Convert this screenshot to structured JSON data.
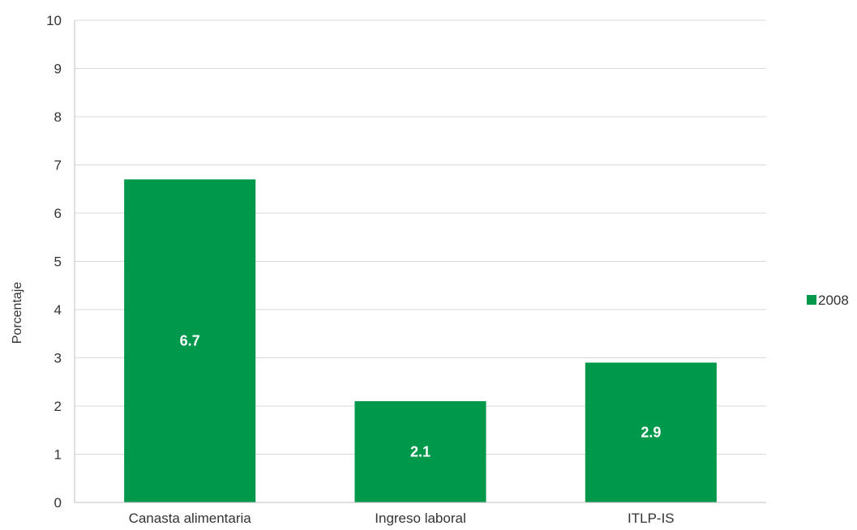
{
  "chart_data": {
    "type": "bar",
    "categories": [
      "Canasta alimentaria",
      "Ingreso laboral",
      "ITLP-IS"
    ],
    "series": [
      {
        "name": "2008",
        "values": [
          6.7,
          2.1,
          2.9
        ],
        "color": "#00984a"
      }
    ],
    "data_labels": [
      "6.7",
      "2.1",
      "2.9"
    ],
    "title": "",
    "xlabel": "",
    "ylabel": "Porcentaje",
    "ylim": [
      0,
      10
    ],
    "yticks": [
      0,
      1,
      2,
      3,
      4,
      5,
      6,
      7,
      8,
      9,
      10
    ],
    "grid": true,
    "legend_position": "right"
  }
}
